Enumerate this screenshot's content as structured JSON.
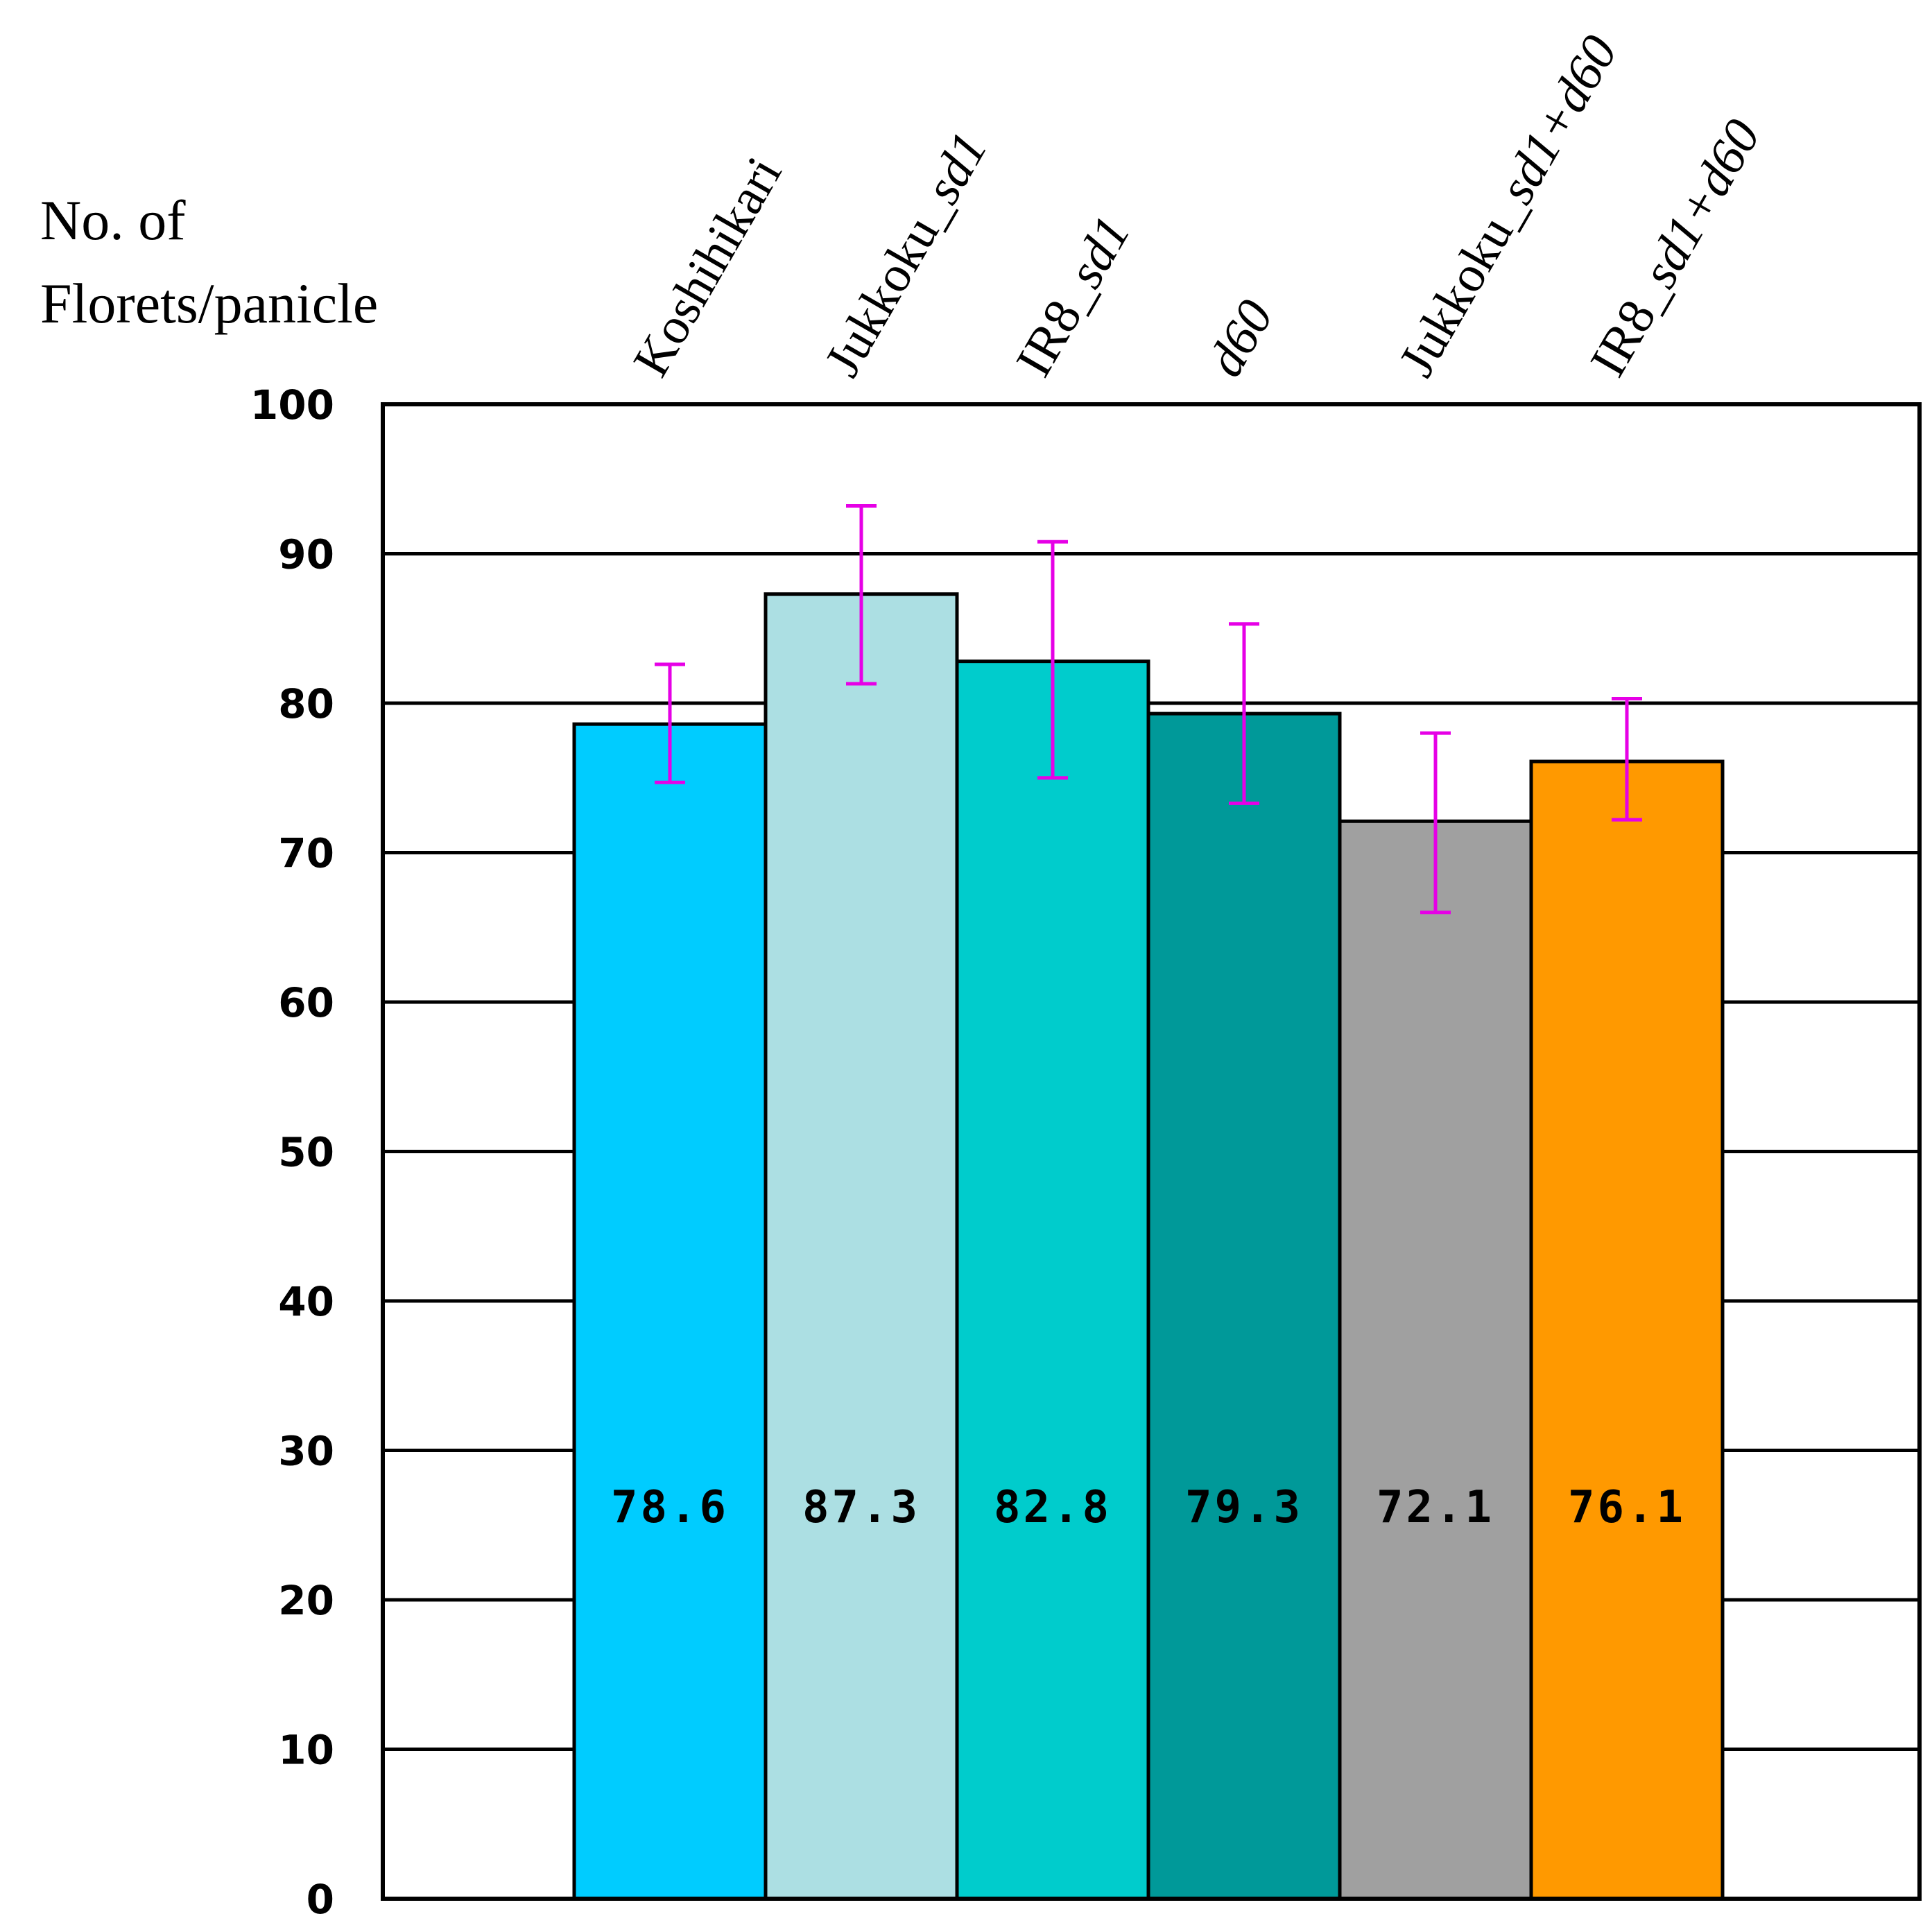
{
  "chart_data": {
    "type": "bar",
    "ylabel_lines": [
      "No. of",
      "Florets/panicle"
    ],
    "ylim": [
      0,
      100
    ],
    "yticks": [
      0,
      10,
      20,
      30,
      40,
      50,
      60,
      70,
      80,
      90,
      100
    ],
    "grid": true,
    "categories": [
      {
        "parts": [
          {
            "t": "Koshihikari",
            "i": false
          }
        ]
      },
      {
        "parts": [
          {
            "t": "Jukkoku_",
            "i": false
          },
          {
            "t": "sd1",
            "i": true
          }
        ]
      },
      {
        "parts": [
          {
            "t": "IR8_",
            "i": false
          },
          {
            "t": "sd1",
            "i": true
          }
        ]
      },
      {
        "parts": [
          {
            "t": "d60",
            "i": true
          }
        ]
      },
      {
        "parts": [
          {
            "t": "Jukkoku_",
            "i": false
          },
          {
            "t": "sd1+d60",
            "i": true
          }
        ]
      },
      {
        "parts": [
          {
            "t": "IR8_",
            "i": false
          },
          {
            "t": "sd1+d60",
            "i": true
          }
        ]
      }
    ],
    "values": [
      78.6,
      87.3,
      82.8,
      79.3,
      72.1,
      76.1
    ],
    "value_labels": [
      "78.6",
      "87.3",
      "82.8",
      "79.3",
      "72.1",
      "76.1"
    ],
    "error_low": [
      74.7,
      81.3,
      75.0,
      73.3,
      66.0,
      72.2
    ],
    "error_high": [
      82.6,
      93.2,
      90.8,
      85.3,
      78.0,
      80.3
    ],
    "colors": [
      "#00ccff",
      "#acdfe3",
      "#00cccc",
      "#009999",
      "#a0a0a0",
      "#ff9900"
    ],
    "error_color": "#e600e6"
  }
}
